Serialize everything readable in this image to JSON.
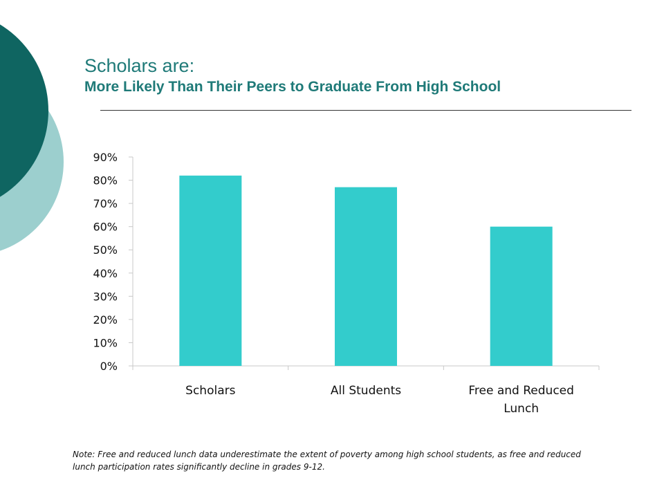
{
  "slide": {
    "title_line1": "Scholars are:",
    "title_line2": "More Likely Than Their Peers to Graduate From High School",
    "note": "Note:  Free and reduced lunch data underestimate the extent of poverty among high school students, as free and reduced lunch participation rates significantly decline in grades 9-12."
  },
  "colors": {
    "title": "#1f7a78",
    "bar": "#33cccc",
    "deco_dark": "#0f6561",
    "deco_light": "#9ccfce"
  },
  "chart_data": {
    "type": "bar",
    "categories": [
      "Scholars",
      "All Students",
      "Free and Reduced Lunch"
    ],
    "category_lines": [
      [
        "Scholars"
      ],
      [
        "All Students"
      ],
      [
        "Free and Reduced",
        "Lunch"
      ]
    ],
    "values": [
      82,
      77,
      60
    ],
    "ylim": [
      0,
      90
    ],
    "yticks": [
      0,
      10,
      20,
      30,
      40,
      50,
      60,
      70,
      80,
      90
    ],
    "ytick_labels": [
      "0%",
      "10%",
      "20%",
      "30%",
      "40%",
      "50%",
      "60%",
      "70%",
      "80%",
      "90%"
    ],
    "grid": false,
    "legend": "none"
  }
}
